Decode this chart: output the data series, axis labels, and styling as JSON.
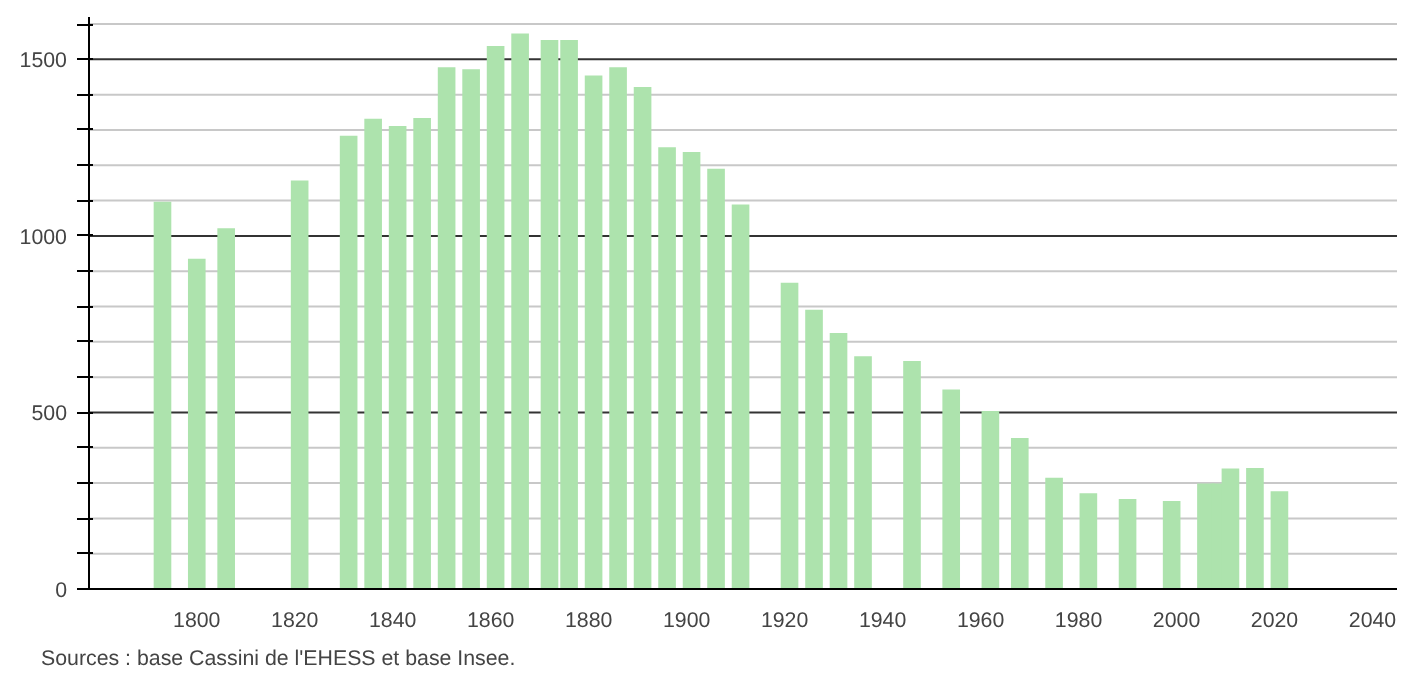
{
  "chart_data": {
    "type": "bar",
    "x": [
      1793,
      1800,
      1806,
      1821,
      1831,
      1836,
      1841,
      1846,
      1851,
      1856,
      1861,
      1866,
      1872,
      1876,
      1881,
      1886,
      1891,
      1896,
      1901,
      1906,
      1911,
      1921,
      1926,
      1931,
      1936,
      1946,
      1954,
      1962,
      1968,
      1975,
      1982,
      1990,
      1999,
      2006,
      2009,
      2011,
      2016,
      2021
    ],
    "values": [
      1097,
      935,
      1022,
      1157,
      1284,
      1332,
      1311,
      1334,
      1478,
      1472,
      1538,
      1573,
      1555,
      1555,
      1454,
      1478,
      1422,
      1251,
      1238,
      1190,
      1089,
      867,
      791,
      725,
      659,
      646,
      565,
      504,
      428,
      315,
      271,
      255,
      249,
      299,
      299,
      341,
      343,
      277
    ],
    "color": "#ade3ad",
    "xlim": [
      1778,
      2045
    ],
    "xticks": [
      1800,
      1820,
      1840,
      1860,
      1880,
      1900,
      1920,
      1940,
      1960,
      1980,
      2000,
      2020,
      2040
    ],
    "ylim": [
      0,
      1620
    ],
    "yticks": [
      0,
      {
        "value": 100,
        "label": null
      },
      {
        "value": 200,
        "label": null
      },
      {
        "value": 300,
        "label": null
      },
      {
        "value": 400,
        "label": null
      },
      500,
      {
        "value": 600,
        "label": null
      },
      {
        "value": 700,
        "label": null
      },
      {
        "value": 800,
        "label": null
      },
      {
        "value": 900,
        "label": null
      },
      1000,
      {
        "value": 1100,
        "label": null
      },
      {
        "value": 1200,
        "label": null
      },
      {
        "value": 1300,
        "label": null
      },
      {
        "value": 1400,
        "label": null
      },
      1500,
      {
        "value": 1600,
        "label": null
      }
    ],
    "grid": "y",
    "annotations": [
      "Sources : base Cassini de l'EHESS et base Insee."
    ]
  }
}
